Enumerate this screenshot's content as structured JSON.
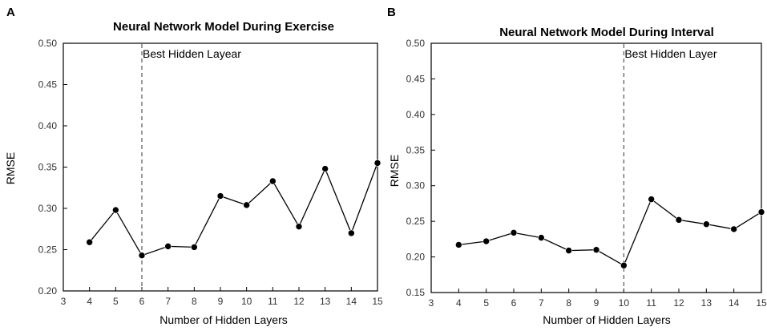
{
  "chart_data": [
    {
      "type": "line",
      "panel_label": "A",
      "title": "Neural Network Model During Exercise",
      "xlabel": "Number of Hidden Layers",
      "ylabel": "RMSE",
      "xlim": [
        3,
        15
      ],
      "ylim": [
        0.2,
        0.5
      ],
      "xticks": [
        "3",
        "4",
        "5",
        "6",
        "7",
        "8",
        "9",
        "10",
        "11",
        "12",
        "13",
        "14",
        "15"
      ],
      "yticks": [
        "0.20",
        "0.25",
        "0.30",
        "0.35",
        "0.40",
        "0.45",
        "0.50"
      ],
      "x": [
        4,
        5,
        6,
        7,
        8,
        9,
        10,
        11,
        12,
        13,
        14,
        15
      ],
      "values": [
        0.259,
        0.298,
        0.243,
        0.254,
        0.253,
        0.315,
        0.304,
        0.333,
        0.278,
        0.348,
        0.27,
        0.355
      ],
      "reference_line": {
        "x": 6,
        "label": "Best Hidden Layear"
      }
    },
    {
      "type": "line",
      "panel_label": "B",
      "title": "Neural Network Model During Interval",
      "xlabel": "Number of Hidden Layers",
      "ylabel": "RMSE",
      "xlim": [
        3,
        15
      ],
      "ylim": [
        0.15,
        0.5
      ],
      "xticks": [
        "3",
        "4",
        "5",
        "6",
        "7",
        "8",
        "9",
        "10",
        "11",
        "12",
        "13",
        "14",
        "15"
      ],
      "yticks": [
        "0.15",
        "0.20",
        "0.25",
        "0.30",
        "0.35",
        "0.40",
        "0.45",
        "0.50"
      ],
      "x": [
        4,
        5,
        6,
        7,
        8,
        9,
        10,
        11,
        12,
        13,
        14,
        15
      ],
      "values": [
        0.217,
        0.222,
        0.234,
        0.227,
        0.209,
        0.21,
        0.188,
        0.281,
        0.252,
        0.246,
        0.239,
        0.263
      ],
      "reference_line": {
        "x": 10,
        "label": "Best Hidden Layer"
      }
    }
  ]
}
